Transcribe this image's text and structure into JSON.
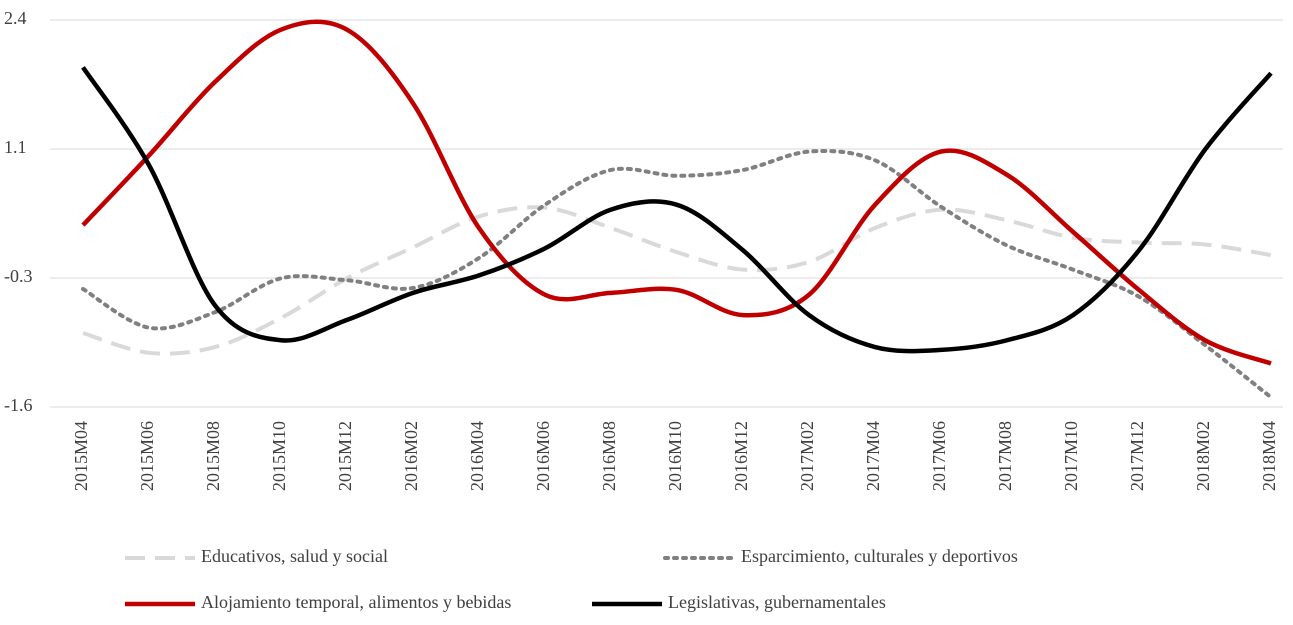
{
  "chart_data": {
    "type": "line",
    "categories": [
      "2015M04",
      "2015M06",
      "2015M08",
      "2015M10",
      "2015M12",
      "2016M02",
      "2016M04",
      "2016M06",
      "2016M08",
      "2016M10",
      "2016M12",
      "2017M02",
      "2017M04",
      "2017M06",
      "2017M08",
      "2017M10",
      "2017M12",
      "2018M02",
      "2018M04"
    ],
    "series": [
      {
        "name": "Educativos, salud y social",
        "color": "#d9d9d9",
        "dash": "dashed",
        "values": [
          -0.835,
          -1.04,
          -0.98,
          -0.68,
          -0.27,
          0.05,
          0.37,
          0.46,
          0.25,
          0.0,
          -0.18,
          -0.1,
          0.25,
          0.44,
          0.33,
          0.15,
          0.1,
          0.08,
          -0.03
        ]
      },
      {
        "name": "Esparcimiento, culturales y deportivos",
        "color": "#808080",
        "dash": "dotted",
        "values": [
          -0.38,
          -0.78,
          -0.62,
          -0.27,
          -0.29,
          -0.37,
          -0.06,
          0.49,
          0.85,
          0.79,
          0.85,
          1.04,
          0.95,
          0.47,
          0.07,
          -0.18,
          -0.46,
          -0.96,
          -1.5
        ]
      },
      {
        "name": "Alojamiento temporal, alimentos y bebidas",
        "color": "#c00000",
        "dash": "solid",
        "values": [
          0.28,
          1.0,
          1.76,
          2.3,
          2.3,
          1.54,
          0.25,
          -0.44,
          -0.42,
          -0.39,
          -0.65,
          -0.44,
          0.49,
          1.04,
          0.8,
          0.21,
          -0.39,
          -0.91,
          -1.15
        ]
      },
      {
        "name": "Legislativas, gubernamentales",
        "color": "#000000",
        "dash": "solid",
        "values": [
          1.91,
          0.9,
          -0.55,
          -0.91,
          -0.7,
          -0.42,
          -0.24,
          0.04,
          0.44,
          0.49,
          0.02,
          -0.65,
          -0.98,
          -1.01,
          -0.91,
          -0.65,
          0.02,
          1.06,
          1.85
        ]
      }
    ],
    "ylim": [
      -1.6,
      2.4
    ],
    "yticks": [
      -1.6,
      {
        "value": -0.2667,
        "label": "-0.3"
      },
      {
        "value": 1.0667,
        "label": "1.1"
      },
      2.4
    ],
    "grid": true,
    "legend": "bottom"
  }
}
